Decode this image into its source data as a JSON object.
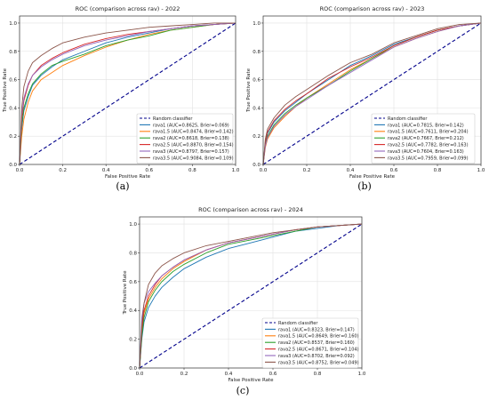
{
  "captions": [
    "(a)",
    "(b)",
    "(c)"
  ],
  "chart_data": [
    {
      "type": "line",
      "title": "ROC (comparison across rav) - 2022",
      "xlabel": "False Positive Rate",
      "ylabel": "True Positive Rate",
      "xlim": [
        0,
        1
      ],
      "ylim": [
        0,
        1.05
      ],
      "xticks": [
        "0.0",
        "0.2",
        "0.4",
        "0.6",
        "0.8",
        "1.0"
      ],
      "yticks": [
        "0.0",
        "0.2",
        "0.4",
        "0.6",
        "0.8",
        "1.0"
      ],
      "grid": true,
      "legend": "lower-right",
      "series": [
        {
          "name": "Random classifier",
          "color": "#00008b",
          "dashed": true,
          "x": [
            0,
            1
          ],
          "y": [
            0,
            1
          ]
        },
        {
          "name": "rava1 (AUC=0.8625, Brier=0.069)",
          "color": "#1f77b4",
          "x": [
            0,
            0.01,
            0.02,
            0.04,
            0.06,
            0.1,
            0.15,
            0.2,
            0.3,
            0.4,
            0.5,
            0.6,
            0.7,
            0.8,
            0.9,
            1
          ],
          "y": [
            0,
            0.25,
            0.38,
            0.48,
            0.56,
            0.63,
            0.69,
            0.74,
            0.8,
            0.86,
            0.9,
            0.93,
            0.96,
            0.98,
            0.99,
            1
          ]
        },
        {
          "name": "rava1.5 (AUC=0.8474, Brier=0.142)",
          "color": "#ff7f0e",
          "x": [
            0,
            0.01,
            0.02,
            0.04,
            0.06,
            0.1,
            0.15,
            0.2,
            0.3,
            0.4,
            0.5,
            0.6,
            0.7,
            0.8,
            0.9,
            1
          ],
          "y": [
            0,
            0.2,
            0.32,
            0.44,
            0.52,
            0.6,
            0.65,
            0.7,
            0.77,
            0.83,
            0.88,
            0.92,
            0.95,
            0.97,
            0.99,
            1
          ]
        },
        {
          "name": "rava2 (AUC=0.8618, Brier=0.138)",
          "color": "#2ca02c",
          "x": [
            0,
            0.01,
            0.02,
            0.04,
            0.06,
            0.1,
            0.15,
            0.2,
            0.3,
            0.4,
            0.5,
            0.6,
            0.7,
            0.8,
            0.9,
            1
          ],
          "y": [
            0,
            0.28,
            0.4,
            0.5,
            0.57,
            0.64,
            0.7,
            0.73,
            0.78,
            0.84,
            0.88,
            0.91,
            0.95,
            0.97,
            0.99,
            1
          ]
        },
        {
          "name": "rava2.5 (AUC=0.8870, Brier=0.154)",
          "color": "#d62728",
          "x": [
            0,
            0.01,
            0.02,
            0.04,
            0.06,
            0.1,
            0.15,
            0.2,
            0.3,
            0.4,
            0.5,
            0.6,
            0.7,
            0.8,
            0.9,
            1
          ],
          "y": [
            0,
            0.32,
            0.45,
            0.56,
            0.63,
            0.7,
            0.75,
            0.79,
            0.85,
            0.89,
            0.92,
            0.94,
            0.96,
            0.98,
            0.99,
            1
          ]
        },
        {
          "name": "rava3 (AUC=0.8797, Brier=0.157)",
          "color": "#9467bd",
          "x": [
            0,
            0.01,
            0.02,
            0.04,
            0.06,
            0.1,
            0.15,
            0.2,
            0.3,
            0.4,
            0.5,
            0.6,
            0.7,
            0.8,
            0.9,
            1
          ],
          "y": [
            0,
            0.35,
            0.47,
            0.57,
            0.63,
            0.69,
            0.74,
            0.78,
            0.84,
            0.88,
            0.91,
            0.94,
            0.96,
            0.98,
            0.99,
            1
          ]
        },
        {
          "name": "rava3.5 (AUC=0.9084, Brier=0.109)",
          "color": "#8c564b",
          "x": [
            0,
            0.01,
            0.02,
            0.04,
            0.06,
            0.1,
            0.15,
            0.2,
            0.3,
            0.4,
            0.5,
            0.6,
            0.7,
            0.8,
            0.9,
            1
          ],
          "y": [
            0,
            0.4,
            0.55,
            0.66,
            0.72,
            0.77,
            0.82,
            0.86,
            0.9,
            0.93,
            0.95,
            0.97,
            0.98,
            0.99,
            1,
            1
          ]
        }
      ]
    },
    {
      "type": "line",
      "title": "ROC (comparison across rav) - 2023",
      "xlabel": "False Positive Rate",
      "ylabel": "True Positive Rate",
      "xlim": [
        0,
        1
      ],
      "ylim": [
        0,
        1.05
      ],
      "xticks": [
        "0.0",
        "0.2",
        "0.4",
        "0.6",
        "0.8",
        "1.0"
      ],
      "yticks": [
        "0.0",
        "0.2",
        "0.4",
        "0.6",
        "0.8",
        "1.0"
      ],
      "grid": true,
      "legend": "lower-right",
      "series": [
        {
          "name": "Random classifier",
          "color": "#00008b",
          "dashed": true,
          "x": [
            0,
            1
          ],
          "y": [
            0,
            1
          ]
        },
        {
          "name": "rava1 (AUC=0.7815, Brier=0.142)",
          "color": "#1f77b4",
          "x": [
            0,
            0.01,
            0.02,
            0.05,
            0.1,
            0.15,
            0.2,
            0.3,
            0.4,
            0.5,
            0.6,
            0.7,
            0.8,
            0.9,
            1
          ],
          "y": [
            0,
            0.15,
            0.22,
            0.3,
            0.38,
            0.44,
            0.5,
            0.6,
            0.7,
            0.77,
            0.85,
            0.9,
            0.95,
            0.98,
            1
          ]
        },
        {
          "name": "rava1.5 (AUC=0.7611, Brier=0.204)",
          "color": "#ff7f0e",
          "x": [
            0,
            0.01,
            0.02,
            0.05,
            0.1,
            0.15,
            0.2,
            0.3,
            0.4,
            0.5,
            0.6,
            0.7,
            0.8,
            0.9,
            1
          ],
          "y": [
            0,
            0.12,
            0.18,
            0.26,
            0.34,
            0.41,
            0.47,
            0.57,
            0.67,
            0.75,
            0.83,
            0.89,
            0.94,
            0.98,
            1
          ]
        },
        {
          "name": "rava2 (AUC=0.7667, Brier=0.212)",
          "color": "#2ca02c",
          "x": [
            0,
            0.01,
            0.02,
            0.05,
            0.1,
            0.15,
            0.2,
            0.3,
            0.4,
            0.5,
            0.6,
            0.7,
            0.8,
            0.9,
            1
          ],
          "y": [
            0,
            0.14,
            0.2,
            0.28,
            0.36,
            0.42,
            0.47,
            0.56,
            0.66,
            0.75,
            0.84,
            0.9,
            0.95,
            0.98,
            1
          ]
        },
        {
          "name": "rava2.5 (AUC=0.7782, Brier=0.163)",
          "color": "#d62728",
          "x": [
            0,
            0.01,
            0.02,
            0.05,
            0.1,
            0.15,
            0.2,
            0.3,
            0.4,
            0.5,
            0.6,
            0.7,
            0.8,
            0.9,
            1
          ],
          "y": [
            0,
            0.16,
            0.23,
            0.31,
            0.39,
            0.45,
            0.5,
            0.61,
            0.69,
            0.76,
            0.84,
            0.9,
            0.95,
            0.98,
            1
          ]
        },
        {
          "name": "rava3 (AUC=0.7604, Brier=0.163)",
          "color": "#9467bd",
          "x": [
            0,
            0.01,
            0.02,
            0.05,
            0.1,
            0.15,
            0.2,
            0.3,
            0.4,
            0.5,
            0.6,
            0.7,
            0.8,
            0.9,
            1
          ],
          "y": [
            0,
            0.13,
            0.19,
            0.27,
            0.35,
            0.41,
            0.46,
            0.56,
            0.65,
            0.74,
            0.83,
            0.89,
            0.94,
            0.98,
            1
          ]
        },
        {
          "name": "rava3.5 (AUC=0.7959, Brier=0.099)",
          "color": "#8c564b",
          "x": [
            0,
            0.01,
            0.02,
            0.05,
            0.1,
            0.15,
            0.2,
            0.3,
            0.4,
            0.5,
            0.6,
            0.7,
            0.8,
            0.9,
            1
          ],
          "y": [
            0,
            0.18,
            0.25,
            0.33,
            0.42,
            0.48,
            0.53,
            0.63,
            0.72,
            0.78,
            0.86,
            0.91,
            0.96,
            0.99,
            1
          ]
        }
      ]
    },
    {
      "type": "line",
      "title": "ROC (comparison across rav) - 2024",
      "xlabel": "False Positive Rate",
      "ylabel": "True Positive Rate",
      "xlim": [
        0,
        1
      ],
      "ylim": [
        0,
        1.05
      ],
      "xticks": [
        "0.0",
        "0.2",
        "0.4",
        "0.6",
        "0.8",
        "1.0"
      ],
      "yticks": [
        "0.0",
        "0.2",
        "0.4",
        "0.6",
        "0.8",
        "1.0"
      ],
      "grid": true,
      "legend": "lower-right",
      "series": [
        {
          "name": "Random classifier",
          "color": "#00008b",
          "dashed": true,
          "x": [
            0,
            1
          ],
          "y": [
            0,
            1
          ]
        },
        {
          "name": "rava1 (AUC=0.8323, Brier=0.147)",
          "color": "#1f77b4",
          "x": [
            0,
            0.01,
            0.02,
            0.04,
            0.07,
            0.1,
            0.15,
            0.2,
            0.3,
            0.4,
            0.5,
            0.6,
            0.7,
            0.8,
            0.9,
            1
          ],
          "y": [
            0,
            0.2,
            0.32,
            0.42,
            0.5,
            0.56,
            0.63,
            0.69,
            0.77,
            0.83,
            0.87,
            0.91,
            0.95,
            0.97,
            0.99,
            1
          ]
        },
        {
          "name": "rava1.5 (AUC=0.8649, Brier=0.160)",
          "color": "#ff7f0e",
          "x": [
            0,
            0.01,
            0.02,
            0.04,
            0.07,
            0.1,
            0.15,
            0.2,
            0.3,
            0.4,
            0.5,
            0.6,
            0.7,
            0.8,
            0.9,
            1
          ],
          "y": [
            0,
            0.25,
            0.38,
            0.48,
            0.56,
            0.62,
            0.69,
            0.74,
            0.82,
            0.87,
            0.9,
            0.93,
            0.96,
            0.98,
            0.99,
            1
          ]
        },
        {
          "name": "rava2 (AUC=0.8537, Brier=0.160)",
          "color": "#2ca02c",
          "x": [
            0,
            0.01,
            0.02,
            0.04,
            0.07,
            0.1,
            0.15,
            0.2,
            0.3,
            0.4,
            0.5,
            0.6,
            0.7,
            0.8,
            0.9,
            1
          ],
          "y": [
            0,
            0.22,
            0.35,
            0.46,
            0.54,
            0.6,
            0.67,
            0.72,
            0.8,
            0.86,
            0.89,
            0.92,
            0.95,
            0.98,
            0.99,
            1
          ]
        },
        {
          "name": "rava2.5 (AUC=0.8671, Brier=0.104)",
          "color": "#d62728",
          "x": [
            0,
            0.01,
            0.02,
            0.04,
            0.07,
            0.1,
            0.15,
            0.2,
            0.3,
            0.4,
            0.5,
            0.6,
            0.7,
            0.8,
            0.9,
            1
          ],
          "y": [
            0,
            0.27,
            0.4,
            0.5,
            0.58,
            0.64,
            0.7,
            0.75,
            0.82,
            0.87,
            0.9,
            0.93,
            0.96,
            0.98,
            0.99,
            1
          ]
        },
        {
          "name": "rava3 (AUC=0.8702, Brier=0.092)",
          "color": "#9467bd",
          "x": [
            0,
            0.01,
            0.02,
            0.04,
            0.07,
            0.1,
            0.15,
            0.2,
            0.3,
            0.4,
            0.5,
            0.6,
            0.7,
            0.8,
            0.9,
            1
          ],
          "y": [
            0,
            0.35,
            0.45,
            0.53,
            0.59,
            0.64,
            0.7,
            0.75,
            0.82,
            0.87,
            0.9,
            0.93,
            0.96,
            0.98,
            0.99,
            1
          ]
        },
        {
          "name": "rava3.5 (AUC=0.8752, Brier=0.049)",
          "color": "#8c564b",
          "x": [
            0,
            0.01,
            0.02,
            0.04,
            0.07,
            0.1,
            0.15,
            0.2,
            0.3,
            0.4,
            0.5,
            0.6,
            0.7,
            0.8,
            0.9,
            1
          ],
          "y": [
            0,
            0.3,
            0.45,
            0.58,
            0.66,
            0.71,
            0.76,
            0.8,
            0.85,
            0.88,
            0.91,
            0.94,
            0.96,
            0.98,
            0.99,
            1
          ]
        }
      ]
    }
  ]
}
